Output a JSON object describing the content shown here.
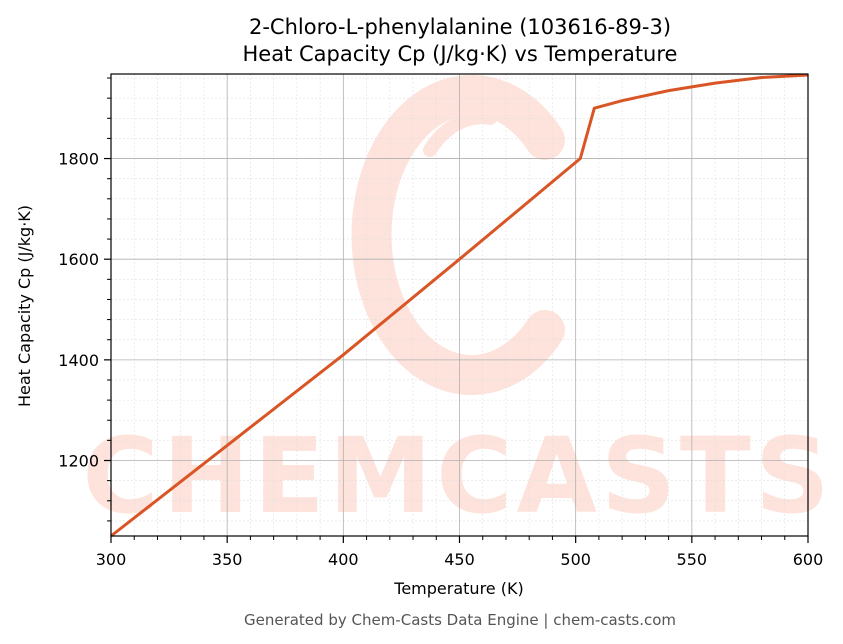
{
  "chart_data": {
    "type": "line",
    "title_line1": "2-Chloro-L-phenylalanine (103616-89-3)",
    "title_line2": "Heat Capacity Cp (J/kg·K) vs Temperature",
    "xlabel": "Temperature (K)",
    "ylabel": "Heat Capacity Cp (J/kg·K)",
    "xlim": [
      300,
      600
    ],
    "ylim": [
      1050,
      1968
    ],
    "xticks": [
      300,
      350,
      400,
      450,
      500,
      550,
      600
    ],
    "yticks": [
      1200,
      1400,
      1600,
      1800
    ],
    "grid": true,
    "series": [
      {
        "color": "#d95525",
        "x": [
          300,
          350,
          400,
          450,
          502,
          508,
          520,
          540,
          560,
          580,
          600
        ],
        "y": [
          1050,
          1230,
          1410,
          1600,
          1800,
          1900,
          1915,
          1935,
          1950,
          1961,
          1966
        ]
      }
    ]
  },
  "watermark": {
    "text": "CHEMCASTS",
    "color": "#fde3dc"
  },
  "footer": {
    "text": "Generated by Chem-Casts Data Engine | chem-casts.com"
  }
}
